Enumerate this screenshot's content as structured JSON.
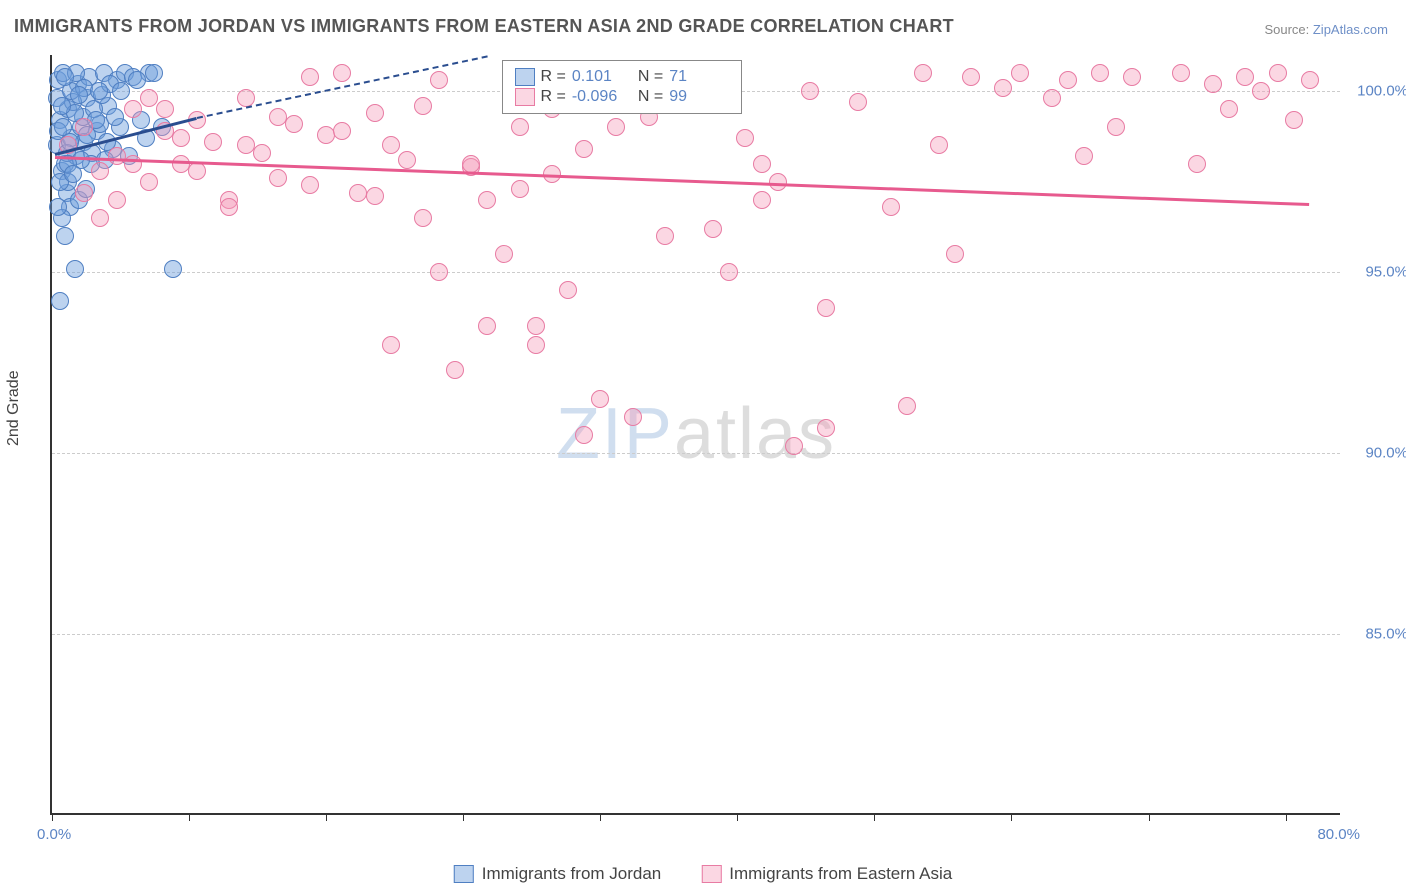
{
  "title": "IMMIGRANTS FROM JORDAN VS IMMIGRANTS FROM EASTERN ASIA 2ND GRADE CORRELATION CHART",
  "source_prefix": "Source: ",
  "source_link": "ZipAtlas.com",
  "ylabel": "2nd Grade",
  "watermark_a": "ZIP",
  "watermark_b": "atlas",
  "chart": {
    "type": "scatter",
    "xlim": [
      0,
      80
    ],
    "ylim": [
      80,
      101
    ],
    "yticks": [
      85.0,
      90.0,
      95.0,
      100.0
    ],
    "ytick_labels": [
      "85.0%",
      "90.0%",
      "95.0%",
      "100.0%"
    ],
    "xtick_positions": [
      0,
      8.5,
      17,
      25.5,
      34,
      42.5,
      51,
      59.5,
      68,
      76.5
    ],
    "xmin_label": "0.0%",
    "xmax_label": "80.0%",
    "background": "#ffffff",
    "grid_color": "#cccccc",
    "axis_color": "#333333",
    "series": [
      {
        "name": "Immigrants from Jordan",
        "color_fill": "rgba(109,158,219,0.45)",
        "color_stroke": "#4f7fc2",
        "trend_color": "#2a4d8f",
        "marker_radius": 9,
        "R": "0.101",
        "N": "71",
        "trend": {
          "x1": 0.2,
          "y1": 98.3,
          "x2": 9.0,
          "y2": 99.3,
          "x2_dash": 27,
          "y2_dash": 101
        },
        "points": [
          [
            0.3,
            98.5
          ],
          [
            0.5,
            99.2
          ],
          [
            0.6,
            97.8
          ],
          [
            0.8,
            98.0
          ],
          [
            1.0,
            99.5
          ],
          [
            1.2,
            98.7
          ],
          [
            0.4,
            100.3
          ],
          [
            0.7,
            100.5
          ],
          [
            1.5,
            98.2
          ],
          [
            1.8,
            99.0
          ],
          [
            2.0,
            98.6
          ],
          [
            2.2,
            99.8
          ],
          [
            2.5,
            98.3
          ],
          [
            0.9,
            97.2
          ],
          [
            1.1,
            96.8
          ],
          [
            1.3,
            99.7
          ],
          [
            1.6,
            100.2
          ],
          [
            1.9,
            99.3
          ],
          [
            2.3,
            100.4
          ],
          [
            2.8,
            98.9
          ],
          [
            3.0,
            99.1
          ],
          [
            3.2,
            100.5
          ],
          [
            3.5,
            99.6
          ],
          [
            3.8,
            98.4
          ],
          [
            4.0,
            100.3
          ],
          [
            4.2,
            99.0
          ],
          [
            4.5,
            100.5
          ],
          [
            5.0,
            100.4
          ],
          [
            5.5,
            99.2
          ],
          [
            6.0,
            100.5
          ],
          [
            1.4,
            95.1
          ],
          [
            7.5,
            95.1
          ],
          [
            0.5,
            94.2
          ],
          [
            0.6,
            96.5
          ],
          [
            0.8,
            96.0
          ],
          [
            1.0,
            97.5
          ],
          [
            1.7,
            97.0
          ],
          [
            2.1,
            97.3
          ],
          [
            0.3,
            99.8
          ],
          [
            0.4,
            98.9
          ],
          [
            2.6,
            99.5
          ],
          [
            3.3,
            98.1
          ],
          [
            1.2,
            100.0
          ],
          [
            0.9,
            98.3
          ],
          [
            1.5,
            100.5
          ],
          [
            0.7,
            99.0
          ],
          [
            2.0,
            100.1
          ],
          [
            2.4,
            98.0
          ],
          [
            2.7,
            99.2
          ],
          [
            3.1,
            99.9
          ],
          [
            3.6,
            100.2
          ],
          [
            0.5,
            97.5
          ],
          [
            0.8,
            100.4
          ],
          [
            1.1,
            98.6
          ],
          [
            1.4,
            99.4
          ],
          [
            1.8,
            98.1
          ],
          [
            2.2,
            98.8
          ],
          [
            2.9,
            100.0
          ],
          [
            3.4,
            98.6
          ],
          [
            3.9,
            99.3
          ],
          [
            4.3,
            100.0
          ],
          [
            4.8,
            98.2
          ],
          [
            5.3,
            100.3
          ],
          [
            5.8,
            98.7
          ],
          [
            6.3,
            100.5
          ],
          [
            6.8,
            99.0
          ],
          [
            0.4,
            96.8
          ],
          [
            0.6,
            99.6
          ],
          [
            1.0,
            98.0
          ],
          [
            1.3,
            97.7
          ],
          [
            1.7,
            99.9
          ]
        ]
      },
      {
        "name": "Immigrants from Eastern Asia",
        "color_fill": "rgba(244,154,184,0.40)",
        "color_stroke": "#e87ba3",
        "trend_color": "#e75a8e",
        "marker_radius": 9,
        "R": "-0.096",
        "N": "99",
        "trend": {
          "x1": 0.2,
          "y1": 98.2,
          "x2": 78,
          "y2": 96.9
        },
        "points": [
          [
            1,
            98.5
          ],
          [
            2,
            99.0
          ],
          [
            3,
            97.8
          ],
          [
            4,
            98.2
          ],
          [
            5,
            99.5
          ],
          [
            6,
            97.5
          ],
          [
            7,
            98.9
          ],
          [
            8,
            98.0
          ],
          [
            9,
            99.2
          ],
          [
            10,
            98.6
          ],
          [
            11,
            97.0
          ],
          [
            12,
            99.8
          ],
          [
            13,
            98.3
          ],
          [
            14,
            97.6
          ],
          [
            15,
            99.1
          ],
          [
            16,
            100.4
          ],
          [
            17,
            98.8
          ],
          [
            18,
            100.5
          ],
          [
            19,
            97.2
          ],
          [
            20,
            99.4
          ],
          [
            21,
            93.0
          ],
          [
            22,
            98.1
          ],
          [
            23,
            99.6
          ],
          [
            4,
            97.0
          ],
          [
            24,
            100.3
          ],
          [
            25,
            92.3
          ],
          [
            26,
            97.9
          ],
          [
            27,
            93.5
          ],
          [
            28,
            95.5
          ],
          [
            29,
            99.0
          ],
          [
            30,
            93.5
          ],
          [
            31,
            97.7
          ],
          [
            32,
            100.2
          ],
          [
            33,
            98.4
          ],
          [
            34,
            91.5
          ],
          [
            35,
            100.5
          ],
          [
            36,
            91.0
          ],
          [
            37,
            99.3
          ],
          [
            38,
            96.0
          ],
          [
            3,
            96.5
          ],
          [
            40,
            100.4
          ],
          [
            11,
            96.8
          ],
          [
            42,
            95.0
          ],
          [
            43,
            98.7
          ],
          [
            44,
            98.0
          ],
          [
            45,
            97.5
          ],
          [
            46,
            90.2
          ],
          [
            47,
            100.0
          ],
          [
            48,
            94.0
          ],
          [
            5,
            98.0
          ],
          [
            50,
            99.7
          ],
          [
            24,
            95.0
          ],
          [
            52,
            96.8
          ],
          [
            53,
            91.3
          ],
          [
            54,
            100.5
          ],
          [
            55,
            98.5
          ],
          [
            56,
            95.5
          ],
          [
            57,
            100.4
          ],
          [
            7,
            99.5
          ],
          [
            59,
            100.1
          ],
          [
            60,
            100.5
          ],
          [
            27,
            97.0
          ],
          [
            62,
            99.8
          ],
          [
            63,
            100.3
          ],
          [
            64,
            98.2
          ],
          [
            65,
            100.5
          ],
          [
            66,
            99.0
          ],
          [
            67,
            100.4
          ],
          [
            8,
            98.7
          ],
          [
            30,
            93.0
          ],
          [
            70,
            100.5
          ],
          [
            71,
            98.0
          ],
          [
            72,
            100.2
          ],
          [
            73,
            99.5
          ],
          [
            74,
            100.4
          ],
          [
            75,
            100.0
          ],
          [
            76,
            100.5
          ],
          [
            77,
            99.2
          ],
          [
            78,
            100.3
          ],
          [
            33,
            90.5
          ],
          [
            2,
            97.2
          ],
          [
            6,
            99.8
          ],
          [
            9,
            97.8
          ],
          [
            12,
            98.5
          ],
          [
            14,
            99.3
          ],
          [
            16,
            97.4
          ],
          [
            18,
            98.9
          ],
          [
            20,
            97.1
          ],
          [
            23,
            96.5
          ],
          [
            26,
            98.0
          ],
          [
            29,
            97.3
          ],
          [
            32,
            94.5
          ],
          [
            35,
            99.0
          ],
          [
            38,
            100.0
          ],
          [
            41,
            96.2
          ],
          [
            44,
            97.0
          ],
          [
            48,
            90.7
          ],
          [
            21,
            98.5
          ],
          [
            31,
            99.5
          ]
        ]
      }
    ]
  },
  "legend_top": {
    "rows": [
      {
        "swatch_fill": "rgba(109,158,219,0.45)",
        "swatch_stroke": "#4f7fc2",
        "r_label": "R =",
        "r_val": "0.101",
        "n_label": "N =",
        "n_val": "71"
      },
      {
        "swatch_fill": "rgba(244,154,184,0.40)",
        "swatch_stroke": "#e87ba3",
        "r_label": "R =",
        "r_val": "-0.096",
        "n_label": "N =",
        "n_val": "99"
      }
    ]
  },
  "legend_bottom": [
    {
      "swatch_fill": "rgba(109,158,219,0.45)",
      "swatch_stroke": "#4f7fc2",
      "label": "Immigrants from Jordan"
    },
    {
      "swatch_fill": "rgba(244,154,184,0.40)",
      "swatch_stroke": "#e87ba3",
      "label": "Immigrants from Eastern Asia"
    }
  ]
}
